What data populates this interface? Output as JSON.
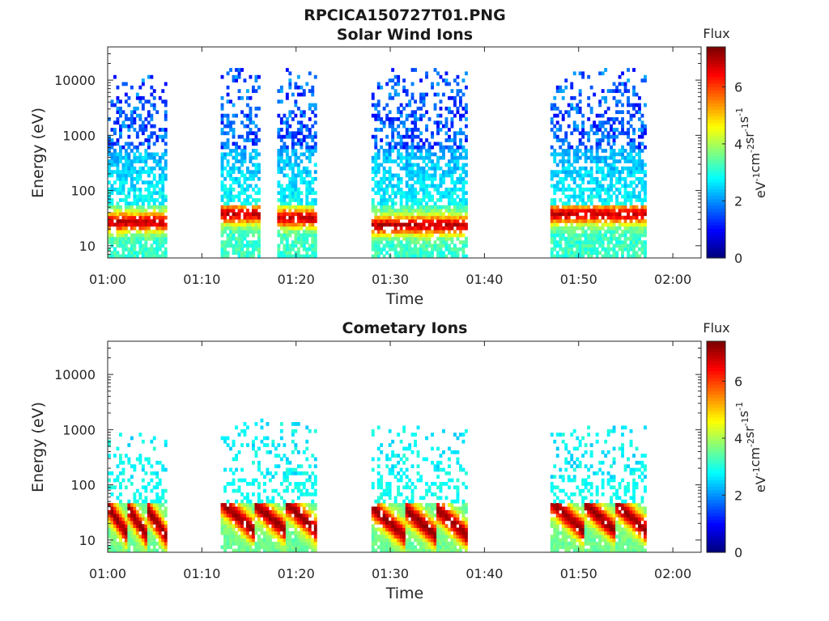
{
  "figure_title": "RPCICA150727T01.PNG",
  "chart_data": [
    {
      "type": "heatmap",
      "title": "Solar Wind Ions",
      "xlabel": "Time",
      "ylabel": "Energy (eV)",
      "xlim": [
        "01:00",
        "02:03"
      ],
      "xticks": [
        "01:00",
        "01:10",
        "01:20",
        "01:30",
        "01:40",
        "01:50",
        "02:00"
      ],
      "ylim": [
        6,
        40000
      ],
      "yscale": "log",
      "yticks": [
        "10",
        "100",
        "1000",
        "10000"
      ],
      "colorbar": {
        "label": "Flux",
        "unit_label": "eV-1cm-2sr-1s-1",
        "range": [
          0,
          7.4
        ],
        "ticks": [
          "0",
          "2",
          "4",
          "6"
        ],
        "colormap": "jet"
      },
      "bursts": [
        {
          "start": "01:00",
          "end": "01:06",
          "peak_energy_eV": 25,
          "peak_flux": 6.3,
          "max_energy_eV": 12000
        },
        {
          "start": "01:12",
          "end": "01:16",
          "peak_energy_eV": 35,
          "peak_flux": 6.5,
          "max_energy_eV": 15000
        },
        {
          "start": "01:18",
          "end": "01:22",
          "peak_energy_eV": 30,
          "peak_flux": 6.3,
          "max_energy_eV": 15000
        },
        {
          "start": "01:28",
          "end": "01:38",
          "peak_energy_eV": 22,
          "peak_flux": 6.3,
          "max_energy_eV": 15000
        },
        {
          "start": "01:47",
          "end": "01:57",
          "peak_energy_eV": 35,
          "peak_flux": 6.8,
          "max_energy_eV": 15000
        }
      ]
    },
    {
      "type": "heatmap",
      "title": "Cometary Ions",
      "xlabel": "Time",
      "ylabel": "Energy (eV)",
      "xlim": [
        "01:00",
        "02:03"
      ],
      "xticks": [
        "01:00",
        "01:10",
        "01:20",
        "01:30",
        "01:40",
        "01:50",
        "02:00"
      ],
      "ylim": [
        6,
        40000
      ],
      "yscale": "log",
      "yticks": [
        "10",
        "100",
        "1000",
        "10000"
      ],
      "colorbar": {
        "label": "Flux",
        "unit_label": "eV-1cm-2sr-1s-1",
        "range": [
          0,
          7.4
        ],
        "ticks": [
          "0",
          "2",
          "4",
          "6"
        ],
        "colormap": "jet"
      },
      "bursts": [
        {
          "start": "01:00",
          "end": "01:06",
          "peak_energy_eV": 20,
          "peak_flux": 7.0,
          "max_energy_eV": 800
        },
        {
          "start": "01:12",
          "end": "01:22",
          "peak_energy_eV": 25,
          "peak_flux": 7.0,
          "max_energy_eV": 1400
        },
        {
          "start": "01:28",
          "end": "01:38",
          "peak_energy_eV": 20,
          "peak_flux": 7.0,
          "max_energy_eV": 1100
        },
        {
          "start": "01:47",
          "end": "01:57",
          "peak_energy_eV": 25,
          "peak_flux": 7.0,
          "max_energy_eV": 1100
        }
      ]
    }
  ]
}
